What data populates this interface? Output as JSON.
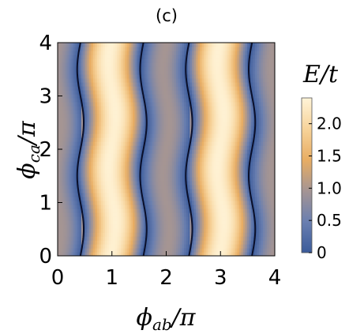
{
  "chart_data": {
    "type": "heatmap",
    "title": "(c)",
    "xlabel": "ϕab/π",
    "xlabel_main": "ϕ",
    "xlabel_sub": "ab",
    "xlabel_tail": "/π",
    "ylabel": "ϕca/π",
    "ylabel_main": "ϕ",
    "ylabel_sub": "ca",
    "ylabel_tail": "/π",
    "xlim": [
      0,
      4
    ],
    "ylim": [
      0,
      4
    ],
    "xticks": [
      "0",
      "1",
      "2",
      "3",
      "4"
    ],
    "yticks": [
      "0",
      "1",
      "2",
      "3",
      "4"
    ],
    "colorbar": {
      "label": "E/t",
      "range": [
        0,
        2.4
      ],
      "ticks": [
        "0",
        "0.5",
        "1.0",
        "1.5",
        "2.0"
      ],
      "tick_values": [
        0,
        0.5,
        1.0,
        1.5,
        2.0
      ],
      "colors": [
        "#3b5b9a",
        "#6a7fb0",
        "#a59593",
        "#e8ad63",
        "#f7d39a",
        "#fff4d8"
      ]
    },
    "zero_contours": [
      {
        "x_center": 0.42,
        "amplitude": 0.06
      },
      {
        "x_center": 1.58,
        "amplitude": 0.06
      },
      {
        "x_center": 2.42,
        "amplitude": 0.06
      },
      {
        "x_center": 3.58,
        "amplitude": 0.06
      }
    ],
    "bright_bands_x": [
      1.0,
      3.0
    ],
    "dim_bands_x": [
      0.0,
      2.0,
      4.0
    ]
  }
}
